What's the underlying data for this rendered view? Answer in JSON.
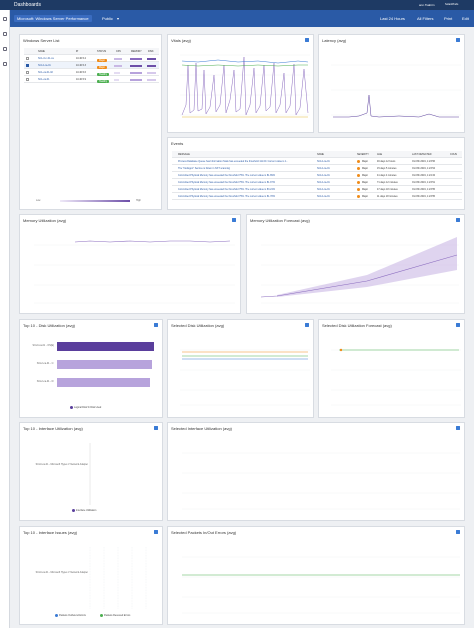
{
  "app": {
    "title": "Dashboards",
    "user": "ann.Tsabrin",
    "brand": "SolarWinds"
  },
  "toolbar": {
    "dashboard_name": "Microsoft: Windows Server Performance",
    "visibility": "Public",
    "time_range": "Last 24 Hours",
    "filters": "All Filters",
    "print": "Print",
    "edit": "Edit"
  },
  "colors": {
    "topbar": "#1e3a64",
    "accent": "#2a5aa6",
    "purple": "#8a6bbf",
    "green": "#4caf50",
    "orange": "#f08c1a"
  },
  "server_list": {
    "title": "Windows Server List",
    "columns": [
      "NAME",
      "IP",
      "STATUS",
      "CPU",
      "MEMORY",
      "DISK"
    ],
    "rows": [
      {
        "name": "SCL-0-n-01-ca",
        "ip": "10.40.5.2",
        "status": "Major",
        "status_color": "#f08c1a"
      },
      {
        "name": "SCL2-ca-01",
        "ip": "10.40.5.3",
        "status": "Major",
        "status_color": "#f08c1a"
      },
      {
        "name": "SCL-ca-01-02",
        "ip": "10.40.5.6",
        "status": "Healthy",
        "status_color": "#4caf50"
      },
      {
        "name": "SCL-ca-01",
        "ip": "10.40.5.9",
        "status": "Healthy",
        "status_color": "#4caf50"
      }
    ],
    "scale_low": "Low",
    "scale_high": "High"
  },
  "vitals": {
    "title": "Vitals (avg)"
  },
  "latency": {
    "title": "Latency (avg)"
  },
  "events": {
    "title": "Events",
    "columns": [
      "MESSAGE",
      "NAME",
      "SEVERITY",
      "AGE",
      "LAST DETECTED",
      "COUN"
    ],
    "rows": [
      {
        "message": "Process Database Queue has Information Stats has exceeded the threshold 111.00. Current value is 1..",
        "name": "SCL2-ca-01",
        "severity": "Major",
        "age": "46 days 12 hours",
        "detected": "Oct 8th 2019, 1:23:56"
      },
      {
        "message": "The \"Netlogon\" Service is Down in NXT scanning",
        "name": "SCL2-ca-01",
        "severity": "Major",
        "age": "15 days 5 minutes",
        "detected": "Oct 8th 2019, 1:23:54"
      },
      {
        "message": "Committed Physical Memory has exceeded the threshold 75%. The current value is 81.89%",
        "name": "SCL2-ca-01",
        "severity": "Major",
        "age": "41 days 4 minutes",
        "detected": "Oct 8th 2019, 1:24:34"
      },
      {
        "message": "Committed Physical Memory has exceeded the threshold 75%. The current value is 81.97%",
        "name": "SCL2-ca-01",
        "severity": "Major",
        "age": "71 days 12 minutes",
        "detected": "Oct 8th 2019, 1:23:51"
      },
      {
        "message": "Committed Physical Memory has exceeded the threshold 75%. The current value is 83.24%",
        "name": "SCL2-ca-01",
        "severity": "Major",
        "age": "47 days 18 minutes",
        "detected": "Oct 8th 2019, 1:23:55"
      },
      {
        "message": "Committed Physical Memory has exceeded the threshold 75%. The current value is 81.78%",
        "name": "SCL2-ca-01",
        "severity": "Major",
        "age": "11 days 18 minutes",
        "detected": "Oct 8th 2019, 1:23:55"
      }
    ]
  },
  "memory_util": {
    "title": "Memory Utilization (avg)"
  },
  "memory_forecast": {
    "title": "Memory Utilization Forecast (avg)"
  },
  "top_disk": {
    "title": "Top 10 - Disk Utilization (avg)",
    "legend": "Logical Disk % Disk Used",
    "bars": [
      {
        "label": "SCL0-ca-01 - OS(E)",
        "value": 0.97
      },
      {
        "label": "SCL2-ca-01 - C:",
        "value": 0.95
      },
      {
        "label": "SCL2-ca-01 - D:",
        "value": 0.93
      }
    ]
  },
  "selected_disk": {
    "title": "Selected Disk Utilization (avg)"
  },
  "disk_forecast": {
    "title": "Selected Disk Utilization Forecast (avg)"
  },
  "top_interface": {
    "title": "Top 10 - Interface Utilization (avg)",
    "label": "SCL0-ca-01 - Microsoft Hyper-V Network Adapter",
    "legend": "Interface Utilization"
  },
  "selected_interface": {
    "title": "Selected Interface Utilization (avg)"
  },
  "top_interface_issues": {
    "title": "Top 10 - Interface Issues (avg)",
    "label": "SCL0-ca-01 - Microsoft Hyper-V Network Adapter",
    "legend_a": "Packets Outbound Errors",
    "legend_b": "Packets Received Errors"
  },
  "packets": {
    "title": "Selected Packets In/Out Errors (avg)"
  }
}
